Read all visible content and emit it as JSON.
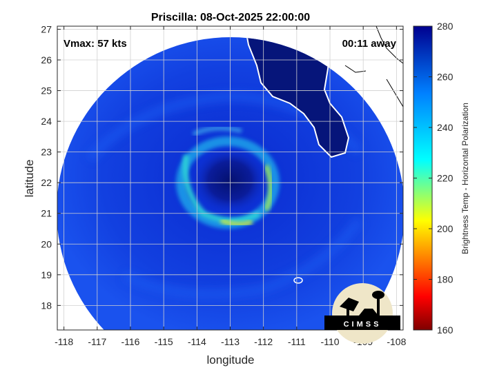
{
  "chart_data": {
    "type": "heatmap",
    "title": "Priscilla: 08-Oct-2025 22:00:00",
    "xlabel": "longitude",
    "ylabel": "latitude",
    "xlim": [
      -118.2,
      -107.8
    ],
    "ylim": [
      17.2,
      27.1
    ],
    "xticks": [
      -118,
      -117,
      -116,
      -115,
      -114,
      -113,
      -112,
      -111,
      -110,
      -109,
      -108
    ],
    "yticks": [
      18,
      19,
      20,
      21,
      22,
      23,
      24,
      25,
      26,
      27
    ],
    "grid": true,
    "annotations": {
      "vmax": "Vmax: 57 kts",
      "time_offset": "00:11 away"
    },
    "storm_center": {
      "lon": -113.1,
      "lat": 22.1
    },
    "colorbar": {
      "label": "Brightness Temp - Horizontal Polarization",
      "range": [
        160,
        280
      ],
      "ticks": [
        160,
        180,
        200,
        220,
        240,
        260,
        280
      ],
      "colors": [
        "#7f0000",
        "#ff0000",
        "#ffff00",
        "#00ffff",
        "#0080ff",
        "#00008f"
      ]
    },
    "logo_text": "CIMSS"
  }
}
